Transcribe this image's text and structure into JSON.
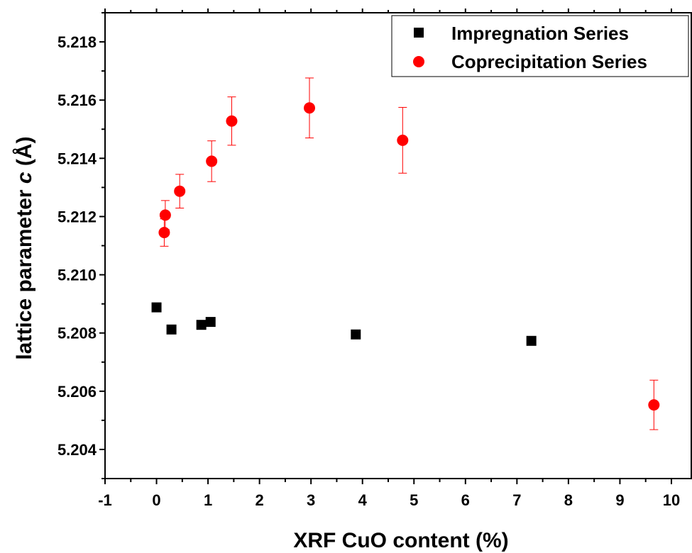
{
  "chart_data": {
    "type": "scatter",
    "xlabel": "XRF CuO content (%)",
    "ylabel_prefix": "lattice parameter ",
    "ylabel_italic": "c",
    "ylabel_suffix": " (Å)",
    "xlim": [
      -1,
      10.4
    ],
    "ylim": [
      5.203,
      5.219
    ],
    "xticks": [
      -1,
      0,
      1,
      2,
      3,
      4,
      5,
      6,
      7,
      8,
      9,
      10
    ],
    "xtick_labels": [
      "-1",
      "0",
      "1",
      "2",
      "3",
      "4",
      "5",
      "6",
      "7",
      "8",
      "9",
      "10"
    ],
    "yticks": [
      5.204,
      5.206,
      5.208,
      5.21,
      5.212,
      5.214,
      5.216,
      5.218
    ],
    "ytick_labels": [
      "5.204",
      "5.206",
      "5.208",
      "5.210",
      "5.212",
      "5.214",
      "5.216",
      "5.218"
    ],
    "grid": false,
    "legend_position": "top-right",
    "series": [
      {
        "name": "Impregnation Series",
        "marker": "square",
        "color": "#000000",
        "points": [
          {
            "x": 0.0,
            "y": 5.20888,
            "err": 0.00015
          },
          {
            "x": 0.29,
            "y": 5.20812,
            "err": 0.0001
          },
          {
            "x": 0.87,
            "y": 5.20828,
            "err": 0.00012
          },
          {
            "x": 1.05,
            "y": 5.20838,
            "err": 0.00015
          },
          {
            "x": 3.87,
            "y": 5.20795,
            "err": 0.00015
          },
          {
            "x": 7.28,
            "y": 5.20773,
            "err": 0.00015
          }
        ]
      },
      {
        "name": "Coprecipitation Series",
        "marker": "circle",
        "color": "#ff0000",
        "points": [
          {
            "x": 0.15,
            "y": 5.21145,
            "err": 0.00047
          },
          {
            "x": 0.17,
            "y": 5.21205,
            "err": 0.0005
          },
          {
            "x": 0.45,
            "y": 5.21287,
            "err": 0.00058
          },
          {
            "x": 1.07,
            "y": 5.2139,
            "err": 0.0007
          },
          {
            "x": 1.46,
            "y": 5.21528,
            "err": 0.00083
          },
          {
            "x": 2.97,
            "y": 5.21573,
            "err": 0.00103
          },
          {
            "x": 4.78,
            "y": 5.21462,
            "err": 0.00113
          },
          {
            "x": 9.66,
            "y": 5.20553,
            "err": 0.00085
          }
        ]
      }
    ]
  }
}
